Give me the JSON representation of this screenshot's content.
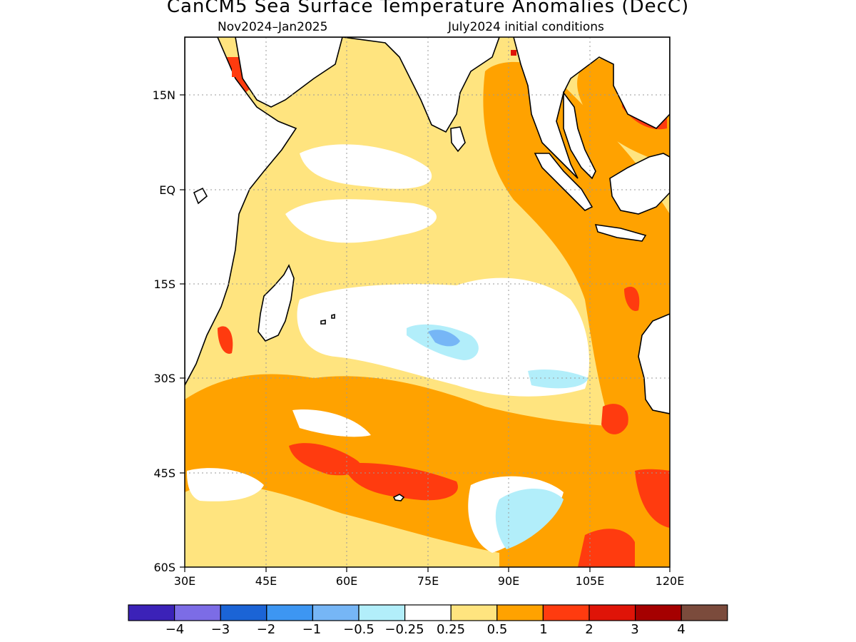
{
  "title": "CanCM5 Sea Surface Temperature Anomalies (DecC)",
  "subtitle_left": "Nov2024–Jan2025",
  "subtitle_right": "July2024 initial conditions",
  "map": {
    "lat_labels": [
      "15N",
      "EQ",
      "15S",
      "30S",
      "45S",
      "60S"
    ],
    "lon_labels": [
      "30E",
      "45E",
      "60E",
      "75E",
      "90E",
      "105E",
      "120E"
    ],
    "grid": "dotted",
    "region": "Indian Ocean"
  },
  "colorbar": {
    "tick_labels": [
      "−4",
      "−3",
      "−2",
      "−1",
      "−0.5",
      "−0.25",
      "0.25",
      "0.5",
      "1",
      "2",
      "3",
      "4"
    ],
    "colors": [
      "#3b22b8",
      "#7c6ce6",
      "#1b64d6",
      "#3d96f2",
      "#76b6f6",
      "#b2eefa",
      "#ffffff",
      "#ffe47f",
      "#ffa200",
      "#ff3b0f",
      "#df1408",
      "#a50000",
      "#7b4b3c"
    ]
  },
  "palette": {
    "land": "#ffffff",
    "pale_yellow": "#ffe47f",
    "orange": "#ffa200",
    "red": "#ff3b0f",
    "light_cyan": "#b2eefa",
    "light_blue": "#76b6f6"
  }
}
